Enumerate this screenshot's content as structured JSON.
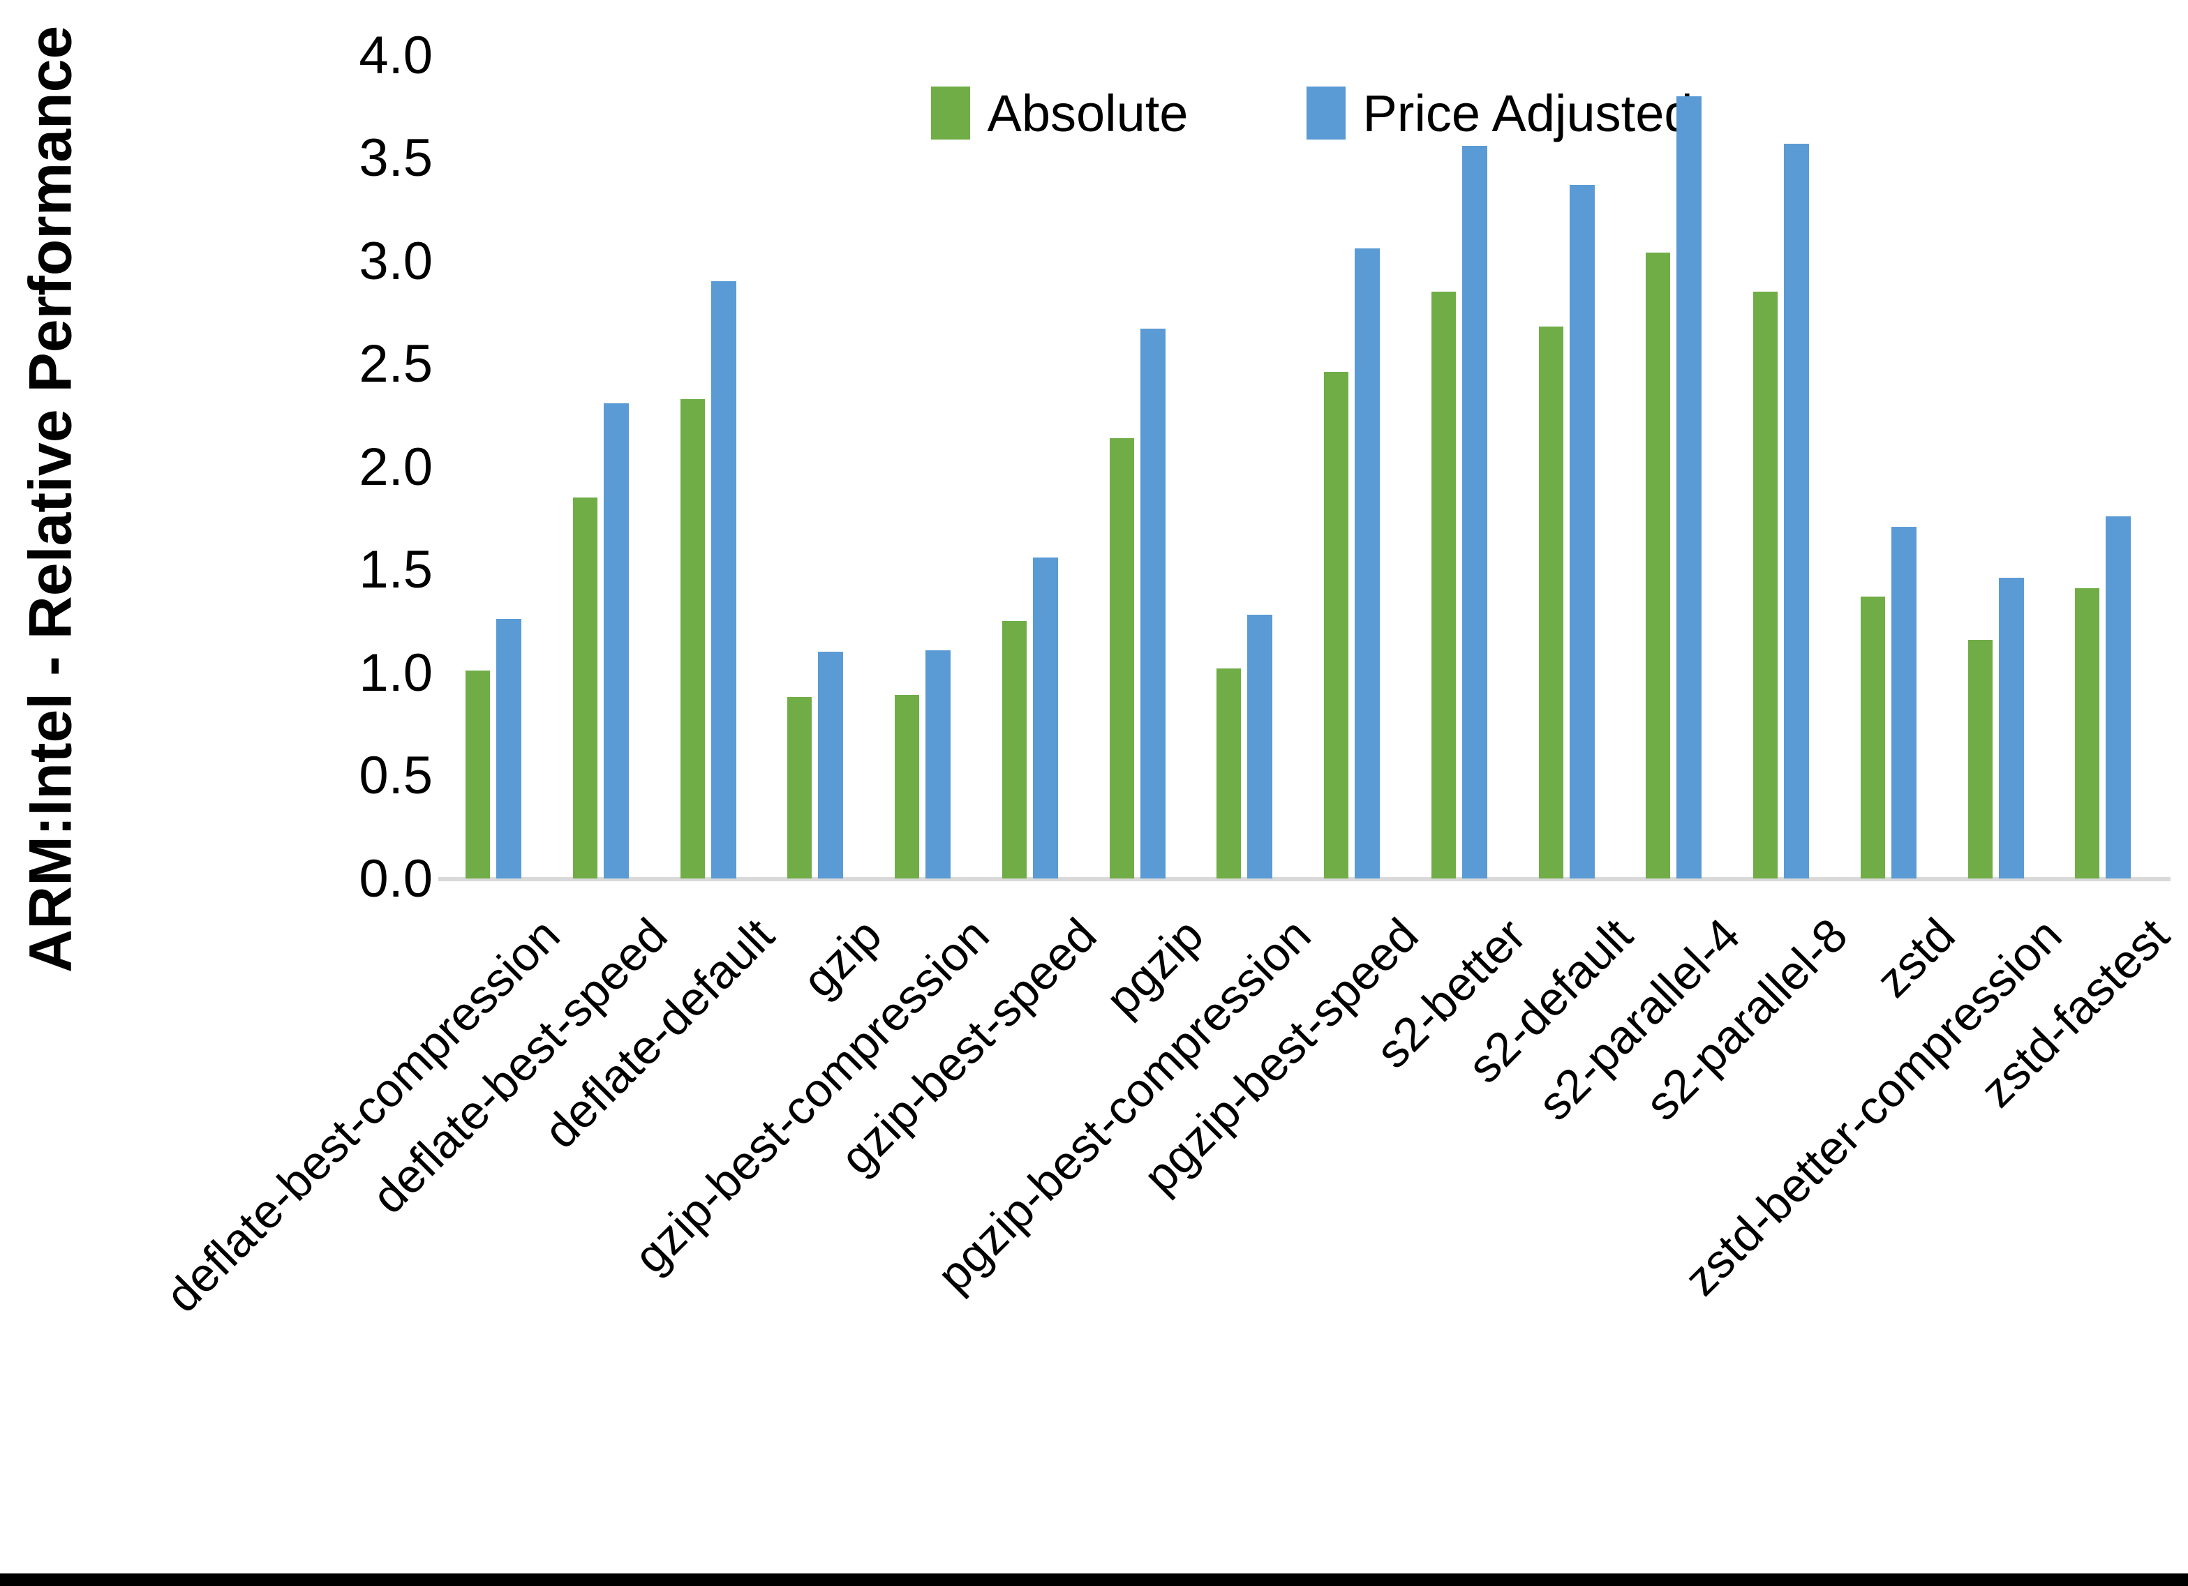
{
  "chart_data": {
    "type": "bar",
    "title": "",
    "xlabel": "",
    "ylabel": "ARM:Intel - Relative Performance",
    "ylim": [
      0.0,
      4.0
    ],
    "ytick_step": 0.5,
    "ytick_labels": [
      "0.0",
      "0.5",
      "1.0",
      "1.5",
      "2.0",
      "2.5",
      "3.0",
      "3.5",
      "4.0"
    ],
    "grid": false,
    "legend_position": "top-center",
    "categories": [
      "deflate-best-compression",
      "deflate-best-speed",
      "deflate-default",
      "gzip",
      "gzip-best-compression",
      "gzip-best-speed",
      "pgzip",
      "pgzip-best-compression",
      "pgzip-best-speed",
      "s2-better",
      "s2-default",
      "s2-parallel-4",
      "s2-parallel-8",
      "zstd",
      "zstd-better-compression",
      "zstd-fastest"
    ],
    "series": [
      {
        "name": "Absolute",
        "color": "#70AD47",
        "values": [
          1.01,
          1.85,
          2.33,
          0.88,
          0.89,
          1.25,
          2.14,
          1.02,
          2.46,
          2.85,
          2.68,
          3.04,
          2.85,
          1.37,
          1.16,
          1.41
        ]
      },
      {
        "name": "Price Adjusted",
        "color": "#5B9BD5",
        "values": [
          1.26,
          2.31,
          2.9,
          1.1,
          1.11,
          1.56,
          2.67,
          1.28,
          3.06,
          3.56,
          3.37,
          3.8,
          3.57,
          1.71,
          1.46,
          1.76
        ]
      }
    ],
    "colors": {
      "axis_baseline": "#D9D9D9",
      "text": "#000000",
      "background": "#FFFFFF",
      "bottom_border": "#000000"
    }
  }
}
